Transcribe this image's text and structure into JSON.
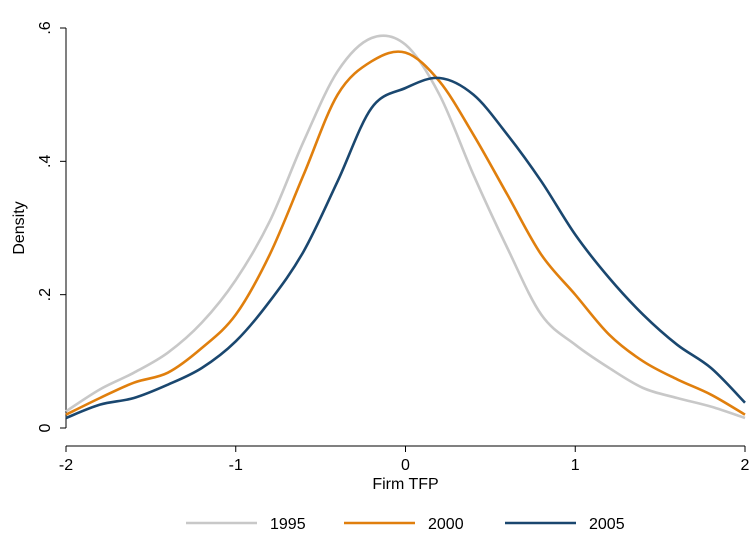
{
  "chart_data": {
    "type": "line",
    "title": "",
    "xlabel": "Firm TFP",
    "ylabel": "Density",
    "xlim": [
      -2,
      2
    ],
    "ylim": [
      0,
      0.6
    ],
    "x_ticks": [
      -2,
      -1,
      0,
      1,
      2
    ],
    "x_tick_labels": [
      "-2",
      "-1",
      "0",
      "1",
      "2"
    ],
    "y_ticks": [
      0,
      0.2,
      0.4,
      0.6
    ],
    "y_tick_labels": [
      "0",
      ".2",
      ".4",
      ".6"
    ],
    "grid": false,
    "legend_position": "bottom",
    "x": [
      -2.0,
      -1.8,
      -1.6,
      -1.4,
      -1.2,
      -1.0,
      -0.8,
      -0.6,
      -0.4,
      -0.2,
      0.0,
      0.2,
      0.4,
      0.6,
      0.8,
      1.0,
      1.2,
      1.4,
      1.6,
      1.8,
      2.0
    ],
    "series": [
      {
        "name": "1995",
        "color": "#c8c8c8",
        "values": [
          0.025,
          0.058,
          0.083,
          0.113,
          0.158,
          0.222,
          0.31,
          0.43,
          0.535,
          0.585,
          0.575,
          0.5,
          0.38,
          0.27,
          0.17,
          0.125,
          0.09,
          0.06,
          0.045,
          0.032,
          0.015
        ]
      },
      {
        "name": "2000",
        "color": "#e07f0d",
        "values": [
          0.02,
          0.045,
          0.068,
          0.083,
          0.12,
          0.17,
          0.26,
          0.38,
          0.5,
          0.55,
          0.563,
          0.52,
          0.44,
          0.35,
          0.26,
          0.2,
          0.14,
          0.1,
          0.073,
          0.05,
          0.02
        ]
      },
      {
        "name": "2005",
        "color": "#1a476f",
        "values": [
          0.015,
          0.035,
          0.045,
          0.065,
          0.09,
          0.13,
          0.19,
          0.265,
          0.37,
          0.48,
          0.51,
          0.525,
          0.5,
          0.44,
          0.37,
          0.29,
          0.225,
          0.17,
          0.125,
          0.09,
          0.038
        ]
      }
    ]
  }
}
